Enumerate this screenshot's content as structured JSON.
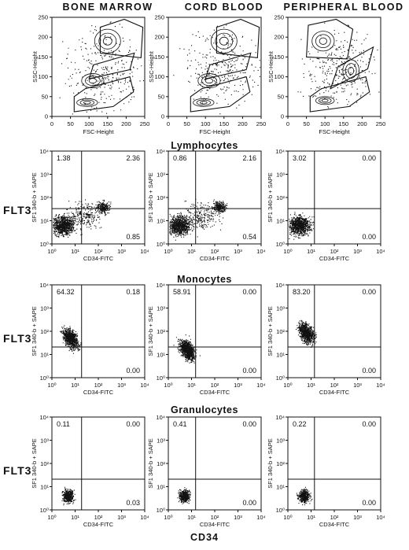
{
  "columns": [
    "BONE MARROW",
    "CORD BLOOD",
    "PERIPHERAL BLOOD"
  ],
  "row_titles": [
    "Lymphocytes",
    "Monocytes",
    "Granulocytes"
  ],
  "side_label": "FLT3",
  "footer_label": "CD34",
  "chart_data": [
    {
      "type": "scatter",
      "panel": "scatter-gate",
      "xlabel": "FSC-Height",
      "ylabel": "SSC-Height",
      "xlim": [
        0,
        250
      ],
      "ylim": [
        0,
        250
      ],
      "x_ticks": [
        0,
        50,
        100,
        150,
        200,
        250
      ],
      "y_ticks": [
        0,
        50,
        100,
        150,
        200,
        250
      ],
      "gates": [
        "Lymphocytes",
        "Monocytes",
        "Granulocytes"
      ]
    },
    {
      "type": "scatter",
      "panel": "quadrant",
      "xlabel": "CD34-FITC",
      "ylabel": "SF1 340-b + SAPE",
      "scale": "log",
      "xlim": [
        1,
        10000
      ],
      "ylim": [
        1,
        10000
      ],
      "tick_labels": [
        "10⁰",
        "10¹",
        "10²",
        "10³",
        "10⁴"
      ],
      "rows": [
        {
          "title": "Lymphocytes",
          "quadrants": [
            {
              "column": "BONE MARROW",
              "upper_left": "1.38",
              "upper_right": "2.36",
              "lower_right": "0.85"
            },
            {
              "column": "CORD BLOOD",
              "upper_left": "0.86",
              "upper_right": "2.16",
              "lower_right": "0.54"
            },
            {
              "column": "PERIPHERAL BLOOD",
              "upper_left": "3.02",
              "upper_right": "0.00",
              "lower_right": "0.00"
            }
          ]
        },
        {
          "title": "Monocytes",
          "quadrants": [
            {
              "column": "BONE MARROW",
              "upper_left": "64.32",
              "upper_right": "0.18",
              "lower_right": "0.00"
            },
            {
              "column": "CORD BLOOD",
              "upper_left": "58.91",
              "upper_right": "0.00",
              "lower_right": "0.00"
            },
            {
              "column": "PERIPHERAL BLOOD",
              "upper_left": "83.20",
              "upper_right": "0.00",
              "lower_right": "0.00"
            }
          ]
        },
        {
          "title": "Granulocytes",
          "quadrants": [
            {
              "column": "BONE MARROW",
              "upper_left": "0.11",
              "upper_right": "0.00",
              "lower_right": "0.03"
            },
            {
              "column": "CORD BLOOD",
              "upper_left": "0.41",
              "upper_right": "0.00",
              "lower_right": "0.00"
            },
            {
              "column": "PERIPHERAL BLOOD",
              "upper_left": "0.22",
              "upper_right": "0.00",
              "lower_right": "0.00"
            }
          ]
        }
      ]
    }
  ]
}
